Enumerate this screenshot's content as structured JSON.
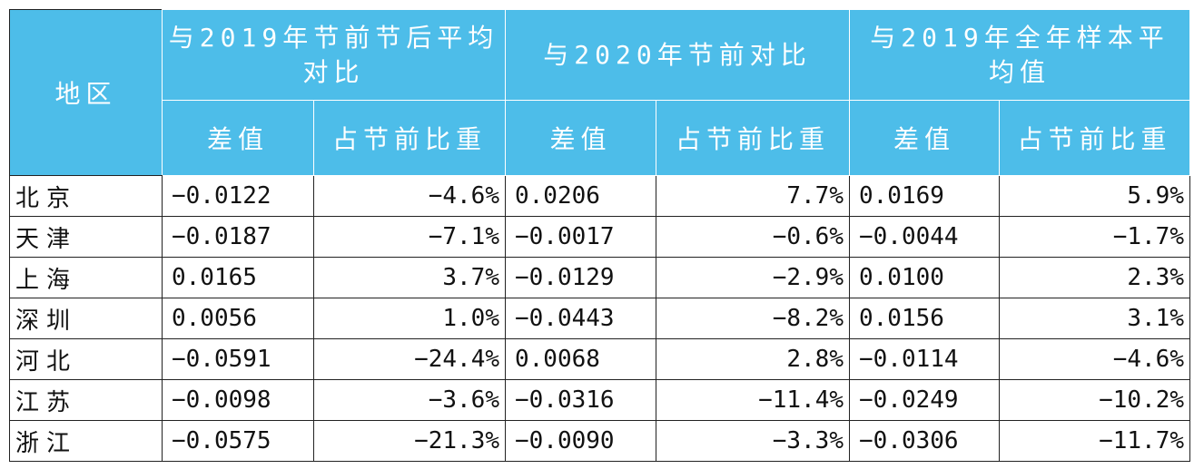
{
  "table": {
    "region_header": "地区",
    "groups": [
      "与2019年节前节后平均对比",
      "与2020年节前对比",
      "与2019年全年样本平均值"
    ],
    "subheaders": [
      "差值",
      "占节前比重",
      "差值",
      "占节前比重",
      "差值",
      "占节前比重"
    ],
    "rows": [
      {
        "region": "北京",
        "cells": [
          "−0.0122",
          "−4.6%",
          "0.0206",
          "7.7%",
          "0.0169",
          "5.9%"
        ]
      },
      {
        "region": "天津",
        "cells": [
          "−0.0187",
          "−7.1%",
          "−0.0017",
          "−0.6%",
          "−0.0044",
          "−1.7%"
        ]
      },
      {
        "region": "上海",
        "cells": [
          "0.0165",
          "3.7%",
          "−0.0129",
          "−2.9%",
          "0.0100",
          "2.3%"
        ]
      },
      {
        "region": "深圳",
        "cells": [
          "0.0056",
          "1.0%",
          "−0.0443",
          "−8.2%",
          "0.0156",
          "3.1%"
        ]
      },
      {
        "region": "河北",
        "cells": [
          "−0.0591",
          "−24.4%",
          "0.0068",
          "2.8%",
          "−0.0114",
          "−4.6%"
        ]
      },
      {
        "region": "江苏",
        "cells": [
          "−0.0098",
          "−3.6%",
          "−0.0316",
          "−11.4%",
          "−0.0249",
          "−10.2%"
        ]
      },
      {
        "region": "浙江",
        "cells": [
          "−0.0575",
          "−21.3%",
          "−0.0090",
          "−3.3%",
          "−0.0306",
          "−11.7%"
        ]
      }
    ]
  }
}
